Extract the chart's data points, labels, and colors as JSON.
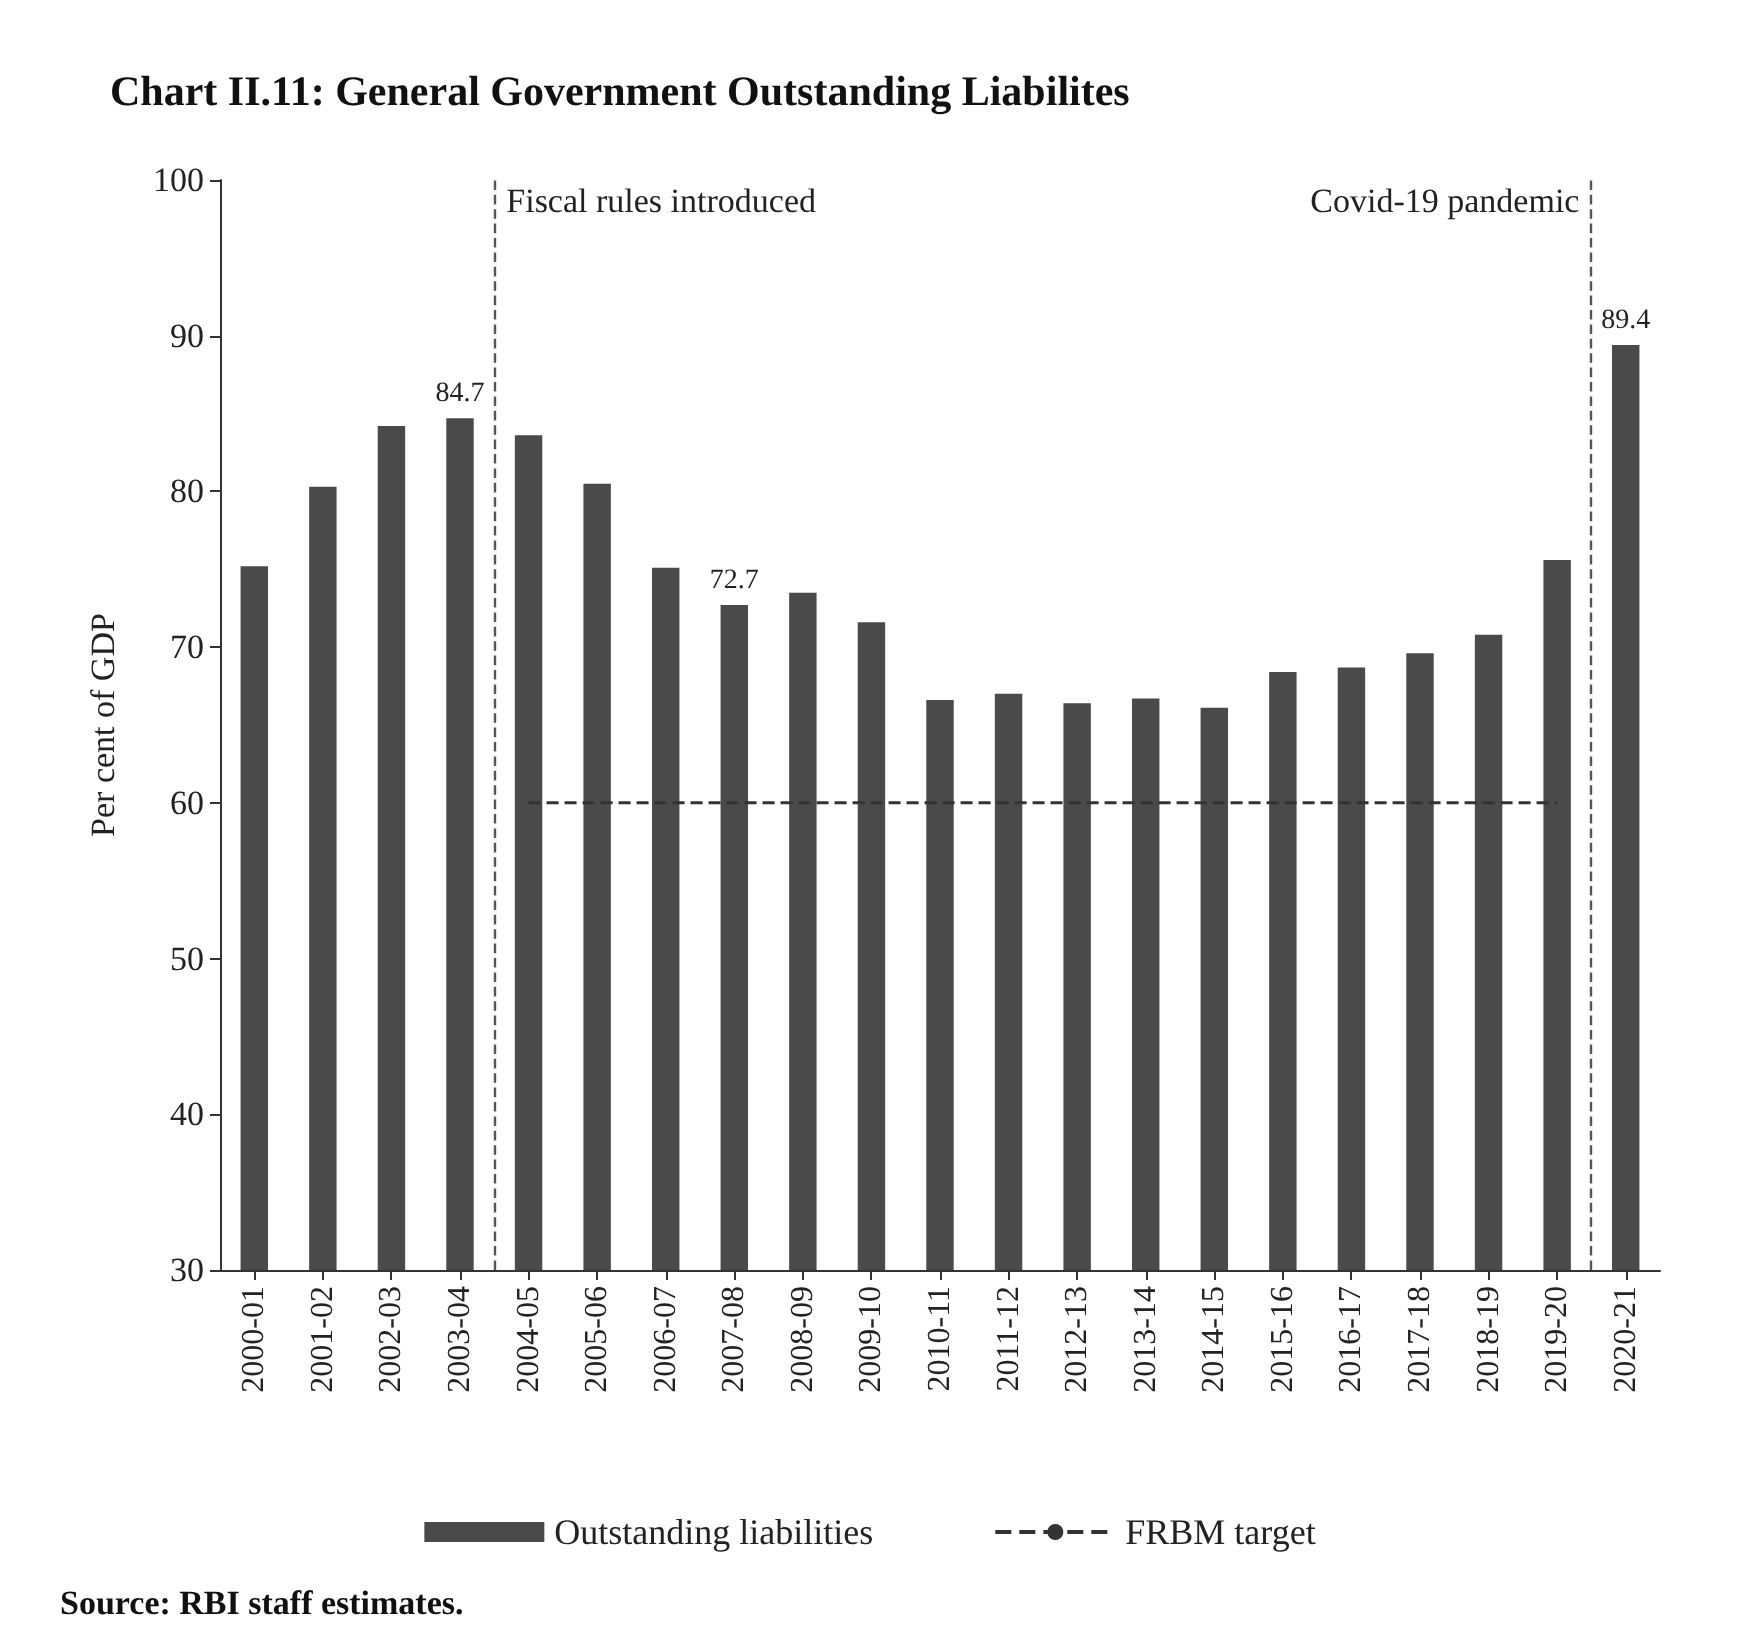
{
  "chart_data": {
    "type": "bar",
    "title": "Chart II.11: General Government Outstanding Liabilites",
    "ylabel": "Per cent of GDP",
    "categories": [
      "2000-01",
      "2001-02",
      "2002-03",
      "2003-04",
      "2004-05",
      "2005-06",
      "2006-07",
      "2007-08",
      "2008-09",
      "2009-10",
      "2010-11",
      "2011-12",
      "2012-13",
      "2013-14",
      "2014-15",
      "2015-16",
      "2016-17",
      "2017-18",
      "2018-19",
      "2019-20",
      "2020-21"
    ],
    "series": [
      {
        "name": "Outstanding liabilities",
        "color": "#4a4a4a",
        "values": [
          75.2,
          80.3,
          84.2,
          84.7,
          83.6,
          80.5,
          75.1,
          72.7,
          73.5,
          71.6,
          66.6,
          67.0,
          66.4,
          66.7,
          66.1,
          68.4,
          68.7,
          69.6,
          70.8,
          75.6,
          89.4
        ],
        "value_labels": [
          null,
          null,
          null,
          "84.7",
          null,
          null,
          null,
          "72.7",
          null,
          null,
          null,
          null,
          null,
          null,
          null,
          null,
          null,
          null,
          null,
          null,
          "89.4"
        ]
      },
      {
        "name": "FRBM target",
        "type": "line",
        "color": "#333333",
        "line_style": "dashed",
        "marker": "none",
        "values": [
          null,
          null,
          null,
          null,
          60,
          60,
          60,
          60,
          60,
          60,
          60,
          60,
          60,
          60,
          60,
          60,
          60,
          60,
          60,
          60,
          null
        ]
      }
    ],
    "ylim": [
      30,
      100
    ],
    "yticks": [
      30,
      40,
      50,
      60,
      70,
      80,
      90,
      100
    ],
    "grid": false,
    "legend": "bottom",
    "ref_lines": [
      {
        "axis": "x",
        "value": "2004-05",
        "label": "Fiscal rules introduced",
        "color": "#555555",
        "line_style": "dashed"
      },
      {
        "axis": "x",
        "value": "2020-21",
        "label": "Covid-19 pandemic",
        "color": "#555555",
        "line_style": "dashed"
      }
    ],
    "annotations": [
      "Source: RBI staff estimates."
    ]
  }
}
